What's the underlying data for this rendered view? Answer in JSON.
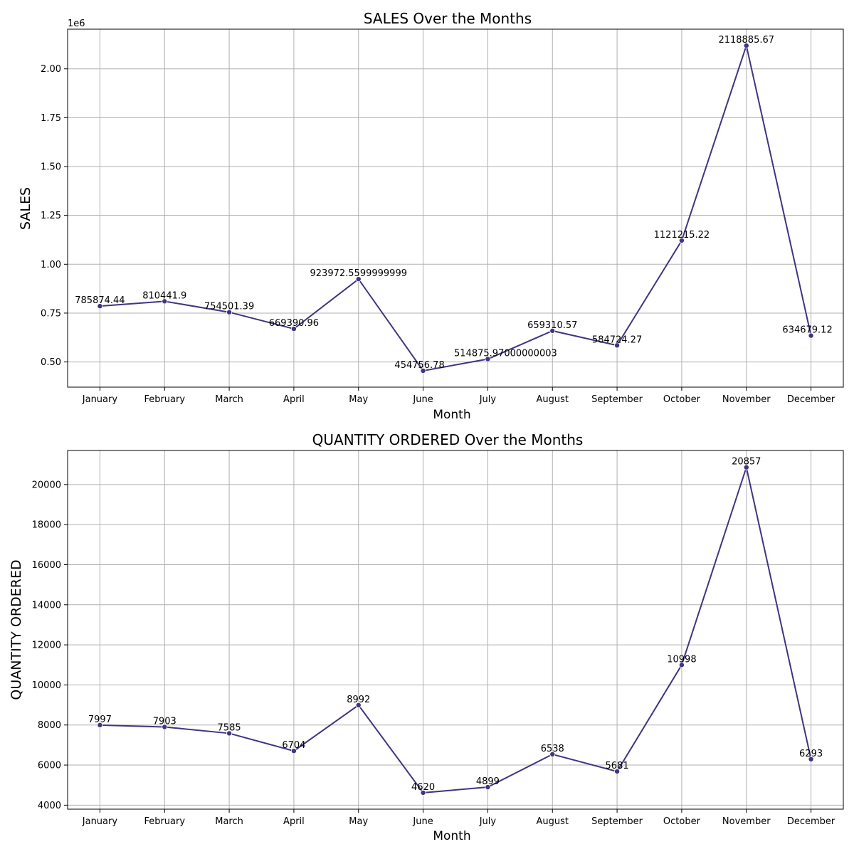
{
  "chart_data": [
    {
      "type": "line",
      "title": "SALES Over the Months",
      "xlabel": "Month",
      "ylabel": "SALES",
      "offset_label": "1e6",
      "categories": [
        "January",
        "February",
        "March",
        "April",
        "May",
        "June",
        "July",
        "August",
        "September",
        "October",
        "November",
        "December"
      ],
      "series": [
        {
          "values": [
            785874.44,
            810441.9,
            754501.39,
            669390.96,
            923972.5599999999,
            454756.78,
            514875.97000000003,
            659310.57,
            584724.27,
            1121215.22,
            2118885.67,
            634679.12
          ]
        }
      ],
      "value_labels": [
        "785874.44",
        "810441.9",
        "754501.39",
        "669390.96",
        "923972.5599999999",
        "454756.78",
        "514875.97000000003",
        "659310.57",
        "584724.27",
        "1121215.22",
        "2118885.67",
        "634679.12"
      ],
      "yticks": [
        500000,
        750000,
        1000000,
        1250000,
        1500000,
        1750000,
        2000000
      ],
      "ytick_labels": [
        "0.50",
        "0.75",
        "1.00",
        "1.25",
        "1.50",
        "1.75",
        "2.00"
      ],
      "ylim": [
        371000,
        2203000
      ],
      "grid": true,
      "line_color": "#3f3580"
    },
    {
      "type": "line",
      "title": "QUANTITY ORDERED Over the Months",
      "xlabel": "Month",
      "ylabel": "QUANTITY ORDERED",
      "categories": [
        "January",
        "February",
        "March",
        "April",
        "May",
        "June",
        "July",
        "August",
        "September",
        "October",
        "November",
        "December"
      ],
      "series": [
        {
          "values": [
            7997,
            7903,
            7585,
            6704,
            8992,
            4620,
            4899,
            6538,
            5681,
            10998,
            20857,
            6293
          ]
        }
      ],
      "value_labels": [
        "7997",
        "7903",
        "7585",
        "6704",
        "8992",
        "4620",
        "4899",
        "6538",
        "5681",
        "10998",
        "20857",
        "6293"
      ],
      "yticks": [
        4000,
        6000,
        8000,
        10000,
        12000,
        14000,
        16000,
        18000,
        20000
      ],
      "ytick_labels": [
        "4000",
        "6000",
        "8000",
        "10000",
        "12000",
        "14000",
        "16000",
        "18000",
        "20000"
      ],
      "ylim": [
        3800,
        21700
      ],
      "grid": true,
      "line_color": "#3f3580"
    }
  ]
}
